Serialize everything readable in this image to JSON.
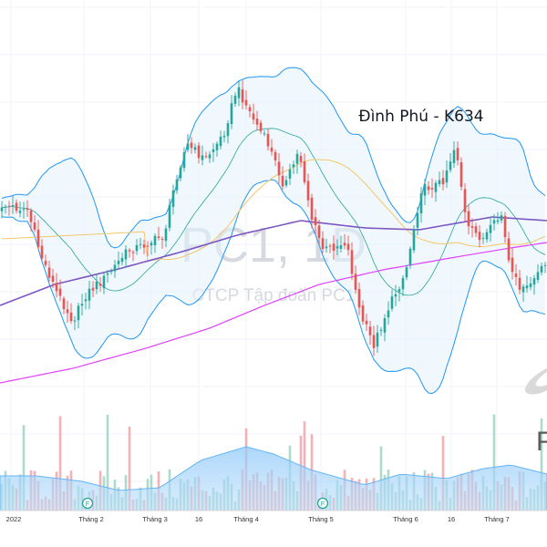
{
  "watermark": {
    "symbol": "PC1, 1D",
    "description": "CTCP Tập đoàn PC1"
  },
  "annotation": "Đình Phú - K634",
  "chart_data": {
    "type": "candlestick",
    "title": "PC1, 1D",
    "subtitle": "CTCP Tập đoàn PC1",
    "x_ticks": [
      "2022",
      "Tháng 2",
      "Tháng 3",
      "16",
      "Tháng 4",
      "Tháng 5",
      "Tháng 6",
      "16",
      "Tháng 7"
    ],
    "event_markers": [
      "F",
      "F"
    ],
    "colors": {
      "up": "#26a69a",
      "down": "#ef5350",
      "bb_band": "#2196f3",
      "bb_fill": "#e3f2fd",
      "ma_mid": "#7e57c2",
      "ma_long": "#e040fb",
      "ma_short": "#f5c66b",
      "volume_ma": "#64b5f6"
    },
    "grid": true,
    "legend": "none"
  },
  "logo": {
    "letter": "F"
  }
}
